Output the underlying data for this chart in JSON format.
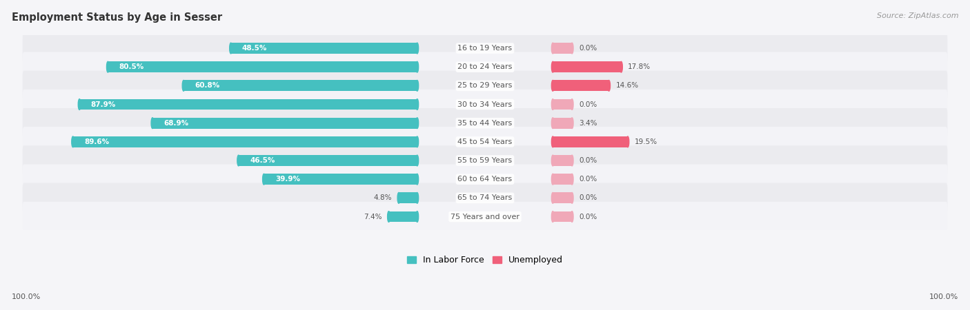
{
  "title": "Employment Status by Age in Sesser",
  "source": "Source: ZipAtlas.com",
  "categories": [
    "16 to 19 Years",
    "20 to 24 Years",
    "25 to 29 Years",
    "30 to 34 Years",
    "35 to 44 Years",
    "45 to 54 Years",
    "55 to 59 Years",
    "60 to 64 Years",
    "65 to 74 Years",
    "75 Years and over"
  ],
  "labor_force": [
    48.5,
    80.5,
    60.8,
    87.9,
    68.9,
    89.6,
    46.5,
    39.9,
    4.8,
    7.4
  ],
  "unemployed": [
    0.0,
    17.8,
    14.6,
    0.0,
    3.4,
    19.5,
    0.0,
    0.0,
    0.0,
    0.0
  ],
  "labor_force_color": "#45c0c0",
  "unemployed_color_strong": "#f0607a",
  "unemployed_color_light": "#f0a8b8",
  "row_bg_even": "#ebebef",
  "row_bg_odd": "#f3f3f7",
  "fig_bg": "#f5f5f8",
  "legend_labor": "In Labor Force",
  "legend_unemployed": "Unemployed",
  "label_color": "#555555",
  "value_color_inside": "#ffffff",
  "value_color_outside": "#555555",
  "min_unemp_bar": 5.0,
  "title_fontsize": 10.5,
  "source_fontsize": 8,
  "bar_height": 0.58,
  "label_fontsize": 8.0,
  "value_fontsize": 7.5
}
